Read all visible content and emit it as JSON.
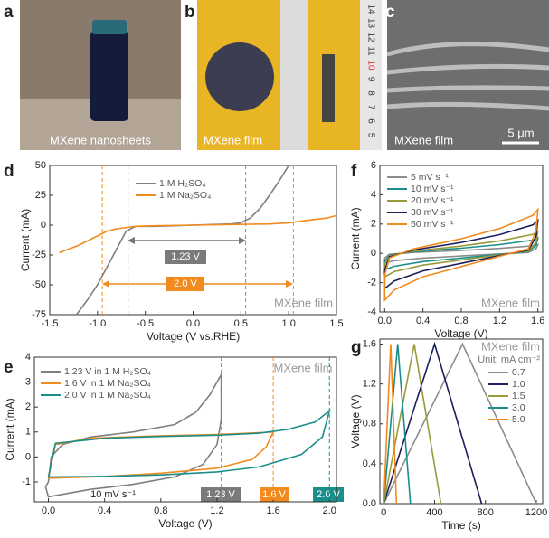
{
  "photos": [
    {
      "label": "a",
      "caption": "MXene nanosheets"
    },
    {
      "label": "b",
      "caption": "MXene film",
      "ruler": [
        "14",
        "13",
        "12",
        "11",
        "10",
        "9",
        "8",
        "7",
        "6",
        "5"
      ]
    },
    {
      "label": "c",
      "caption": "MXene film",
      "scale_bar": "5 μm"
    }
  ],
  "chart_data": [
    {
      "type": "line",
      "panel_label": "d",
      "xlabel": "Voltage (V vs.RHE)",
      "ylabel": "Current (mA)",
      "xlim": [
        -1.5,
        1.5
      ],
      "xticks": [
        -1.5,
        {
          "value": -1,
          "label": "-1.0"
        },
        -0.5,
        {
          "value": 0,
          "label": "0.0"
        },
        0.5,
        {
          "value": 1,
          "label": "1.0"
        },
        1.5
      ],
      "ylim": [
        -75,
        50
      ],
      "yticks": [
        -75,
        -50,
        -25,
        0,
        25,
        50
      ],
      "series": [
        {
          "name": "1 M H₂SO₄",
          "color": "#7f7f7f",
          "x": [
            -1.22,
            -1.1,
            -1.0,
            -0.9,
            -0.8,
            -0.7,
            -0.6,
            -0.4,
            -0.2,
            0,
            0.2,
            0.4,
            0.5,
            0.6,
            0.7,
            0.8,
            0.9,
            1.0
          ],
          "values": [
            -75,
            -62,
            -50,
            -35,
            -20,
            -5,
            -1,
            -1,
            -0.5,
            0,
            0.5,
            1,
            2,
            6,
            14,
            25,
            37,
            50
          ]
        },
        {
          "name": "1 M Na₂SO₄",
          "color": "#f28b1f",
          "x": [
            -1.4,
            -1.2,
            -1.0,
            -0.9,
            -0.8,
            -0.6,
            -0.4,
            0,
            0.4,
            0.8,
            1.0,
            1.2,
            1.4,
            1.5
          ],
          "values": [
            -23,
            -17,
            -9,
            -5,
            -3,
            -1,
            -0.5,
            0,
            0.5,
            1,
            2,
            4,
            6,
            8
          ]
        }
      ],
      "vlines": [
        {
          "value": -0.95,
          "color": "#f28b1f"
        },
        {
          "value": 1.05,
          "color": "#f28b1f"
        },
        {
          "value": -0.68,
          "color": "#8a8a8a"
        },
        {
          "value": 0.55,
          "color": "#8a8a8a"
        }
      ],
      "annotations": [
        "1.23 V",
        "2.0 V",
        "MXene film"
      ]
    },
    {
      "type": "line",
      "panel_label": "e",
      "xlabel": "Voltage (V)",
      "ylabel": "Current (mA)",
      "xlim": [
        -0.1,
        2.05
      ],
      "xticks": [
        {
          "value": 0,
          "label": "0.0"
        },
        0.4,
        0.8,
        1.2,
        1.6,
        {
          "value": 2,
          "label": "2.0"
        }
      ],
      "ylim": [
        -1.8,
        4
      ],
      "yticks": [
        -1,
        0,
        1,
        2,
        3,
        4
      ],
      "series": [
        {
          "name": "1.23 V in 1 M H₂SO₄",
          "color": "#7f7f7f",
          "x": [
            0,
            0.02,
            0.1,
            0.3,
            0.6,
            0.9,
            1.05,
            1.15,
            1.23,
            1.23,
            1.2,
            1.1,
            0.9,
            0.6,
            0.3,
            0.05,
            0,
            -0.02,
            0
          ],
          "values": [
            -1.0,
            0.0,
            0.5,
            0.8,
            1.0,
            1.3,
            1.8,
            2.5,
            3.3,
            1.5,
            0.5,
            -0.3,
            -0.8,
            -1.1,
            -1.3,
            -1.55,
            -1.6,
            -1.2,
            -1.0
          ]
        },
        {
          "name": "1.6 V in 1 M Na₂SO₄",
          "color": "#f28b1f",
          "x": [
            0,
            0.05,
            0.3,
            0.8,
            1.2,
            1.6,
            1.55,
            1.45,
            1.2,
            0.8,
            0.4,
            0
          ],
          "values": [
            -0.85,
            0.5,
            0.75,
            0.85,
            0.9,
            1.0,
            0.4,
            -0.1,
            -0.45,
            -0.65,
            -0.78,
            -0.85
          ]
        },
        {
          "name": "2.0 V in 1 M Na₂SO₄",
          "color": "#1a8f8a",
          "x": [
            0,
            0.05,
            0.4,
            0.8,
            1.2,
            1.5,
            1.7,
            1.9,
            2.0,
            1.95,
            1.8,
            1.5,
            1.2,
            0.8,
            0.4,
            0
          ],
          "values": [
            -0.8,
            0.55,
            0.75,
            0.82,
            0.87,
            0.95,
            1.1,
            1.4,
            1.85,
            0.8,
            0.1,
            -0.4,
            -0.6,
            -0.72,
            -0.78,
            -0.8
          ]
        }
      ],
      "vlines": [
        {
          "value": 1.23,
          "color": "#8a8a8a"
        },
        {
          "value": 1.6,
          "color": "#f28b1f"
        },
        {
          "value": 2.0,
          "color": "#1a8f8a"
        }
      ],
      "annotations": [
        "10 mV s⁻¹",
        "1.23 V",
        "1.6 V",
        "2.0 V",
        "MXene film"
      ]
    },
    {
      "type": "line",
      "panel_label": "f",
      "xlabel": "Voltage (V)",
      "ylabel": "Current (mA)",
      "xlim": [
        -0.05,
        1.65
      ],
      "xticks": [
        {
          "value": 0,
          "label": "0.0"
        },
        0.4,
        0.8,
        1.2,
        1.6
      ],
      "ylim": [
        -4,
        6
      ],
      "yticks": [
        -4,
        -2,
        0,
        2,
        4,
        6
      ],
      "x": [
        0,
        0.05,
        0.3,
        0.8,
        1.2,
        1.55,
        1.6,
        1.58,
        1.5,
        1.2,
        0.8,
        0.4,
        0.1,
        0,
        0
      ],
      "series": [
        {
          "name": "5 mV s⁻¹",
          "color": "#8c8c8c",
          "values": [
            -0.3,
            -0.06,
            0.06,
            0.2,
            0.34,
            0.52,
            0.6,
            0.3,
            0.06,
            -0.04,
            -0.18,
            -0.32,
            -0.5,
            -0.64,
            -0.3
          ]
        },
        {
          "name": "10 mV s⁻¹",
          "color": "#1a8f8a",
          "values": [
            -0.53,
            -0.11,
            0.11,
            0.35,
            0.6,
            0.91,
            1.05,
            0.53,
            0.11,
            -0.07,
            -0.32,
            -0.56,
            -0.88,
            -1.12,
            -0.53
          ]
        },
        {
          "name": "20 mV s⁻¹",
          "color": "#9a9a3a",
          "values": [
            -0.75,
            -0.15,
            0.15,
            0.5,
            0.85,
            1.3,
            1.5,
            0.75,
            0.15,
            -0.1,
            -0.45,
            -0.8,
            -1.25,
            -1.6,
            -0.75
          ]
        },
        {
          "name": "30 mV s⁻¹",
          "color": "#1c1f5e",
          "values": [
            -1.13,
            -0.23,
            0.23,
            0.75,
            1.28,
            1.95,
            2.25,
            1.13,
            0.23,
            -0.15,
            -0.68,
            -1.2,
            -1.88,
            -2.4,
            -1.13
          ]
        },
        {
          "name": "50 mV s⁻¹",
          "color": "#f28b1f",
          "values": [
            -1.5,
            -0.3,
            0.3,
            1.0,
            1.7,
            2.6,
            3.0,
            1.5,
            0.3,
            -0.2,
            -0.9,
            -1.6,
            -2.5,
            -3.2,
            -1.5
          ]
        }
      ],
      "annotations": [
        "MXene film"
      ]
    },
    {
      "type": "line",
      "panel_label": "g",
      "xlabel": "Time (s)",
      "ylabel": "Voltage (V)",
      "xlim": [
        -30,
        1250
      ],
      "xticks": [
        0,
        400,
        800,
        1200
      ],
      "ylim": [
        0,
        1.65
      ],
      "yticks": [
        {
          "value": 0,
          "label": "0.0"
        },
        0.4,
        0.8,
        1.2,
        1.6
      ],
      "legend_title": "Unit: mA cm⁻²",
      "series": [
        {
          "name": "0.7",
          "color": "#8c8c8c",
          "x": [
            0,
            620,
            1200
          ],
          "values": [
            0,
            1.6,
            0
          ]
        },
        {
          "name": "1.0",
          "color": "#1c1f5e",
          "x": [
            0,
            400,
            770
          ],
          "values": [
            0,
            1.6,
            0
          ]
        },
        {
          "name": "1.5",
          "color": "#9a9a3a",
          "x": [
            0,
            240,
            450
          ],
          "values": [
            0,
            1.6,
            0
          ]
        },
        {
          "name": "3.0",
          "color": "#1a8f8a",
          "x": [
            0,
            110,
            210
          ],
          "values": [
            0,
            1.6,
            0
          ]
        },
        {
          "name": "5.0",
          "color": "#f28b1f",
          "x": [
            0,
            55,
            100
          ],
          "values": [
            0,
            1.6,
            0
          ]
        }
      ],
      "annotations": [
        "MXene film"
      ]
    }
  ]
}
